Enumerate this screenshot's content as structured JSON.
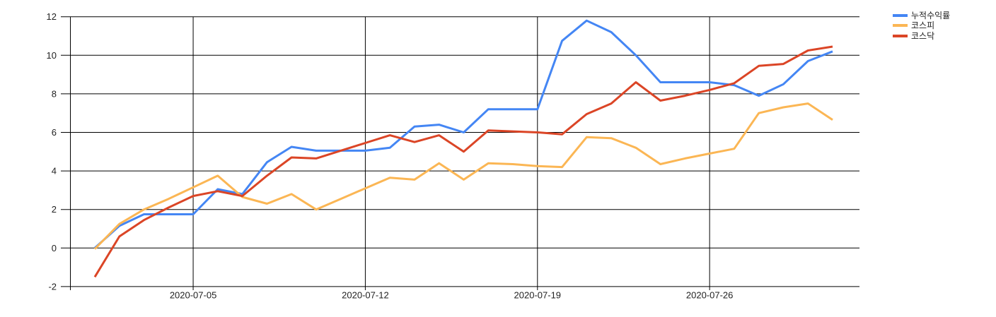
{
  "chart_data": {
    "type": "line",
    "title": "",
    "xlabel": "",
    "ylabel": "",
    "grid": true,
    "legend_position": "top-right",
    "ylim": [
      -2,
      12
    ],
    "y_ticks": [
      12,
      10,
      8,
      6,
      4,
      2,
      0,
      -2
    ],
    "x_gridline_labels": [
      "2020-07-05",
      "2020-07-12",
      "2020-07-19",
      "2020-07-26"
    ],
    "x": [
      "2020-07-01",
      "2020-07-02",
      "2020-07-03",
      "2020-07-04",
      "2020-07-05",
      "2020-07-06",
      "2020-07-07",
      "2020-07-08",
      "2020-07-09",
      "2020-07-10",
      "2020-07-11",
      "2020-07-12",
      "2020-07-13",
      "2020-07-14",
      "2020-07-15",
      "2020-07-16",
      "2020-07-17",
      "2020-07-18",
      "2020-07-19",
      "2020-07-20",
      "2020-07-21",
      "2020-07-22",
      "2020-07-23",
      "2020-07-24",
      "2020-07-25",
      "2020-07-26",
      "2020-07-27",
      "2020-07-28",
      "2020-07-29",
      "2020-07-30",
      "2020-07-31"
    ],
    "series": [
      {
        "name": "누적수익률",
        "color": "#4486F4",
        "values": [
          0.0,
          1.15,
          1.75,
          1.75,
          1.75,
          3.05,
          2.8,
          4.45,
          5.25,
          5.05,
          5.05,
          5.05,
          5.2,
          6.3,
          6.4,
          6.0,
          7.2,
          7.2,
          7.2,
          10.75,
          11.8,
          11.2,
          10.0,
          8.6,
          8.6,
          8.6,
          8.45,
          7.9,
          8.5,
          9.7,
          10.2
        ]
      },
      {
        "name": "코스피",
        "color": "#FBB654",
        "values": [
          -0.05,
          1.25,
          2.0,
          2.55,
          3.15,
          3.75,
          2.65,
          2.3,
          2.8,
          2.0,
          2.55,
          3.1,
          3.65,
          3.55,
          4.4,
          3.55,
          4.4,
          4.35,
          4.25,
          4.2,
          5.75,
          5.7,
          5.2,
          4.35,
          4.65,
          4.9,
          5.15,
          7.0,
          7.3,
          7.5,
          6.65
        ]
      },
      {
        "name": "코스닥",
        "color": "#DB4526",
        "values": [
          -1.5,
          0.6,
          1.45,
          2.1,
          2.7,
          2.95,
          2.7,
          3.75,
          4.7,
          4.65,
          5.05,
          5.45,
          5.85,
          5.5,
          5.85,
          5.0,
          6.1,
          6.05,
          6.0,
          5.9,
          6.95,
          7.5,
          8.6,
          7.65,
          7.9,
          8.2,
          8.55,
          9.45,
          9.55,
          10.25,
          10.45
        ]
      }
    ]
  }
}
